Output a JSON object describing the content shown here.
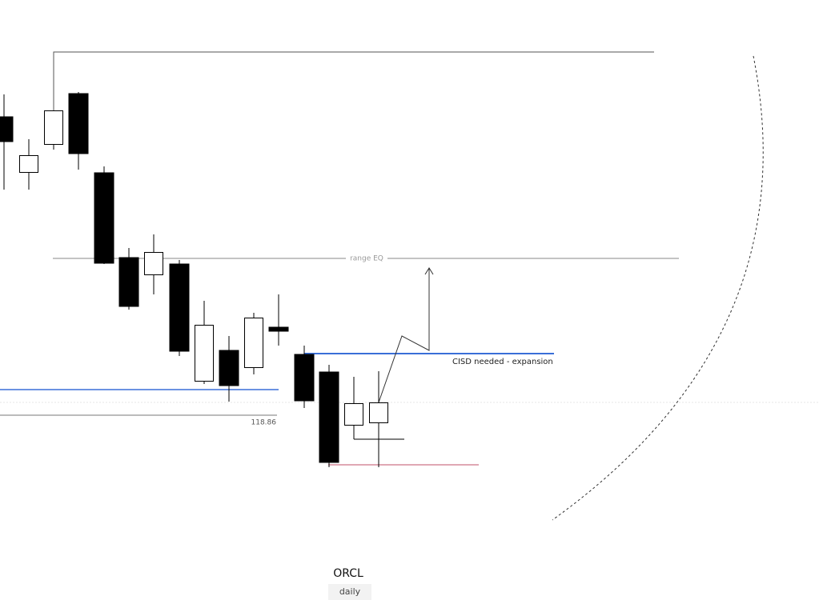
{
  "chart": {
    "symbol": "ORCL",
    "timeframe": "daily",
    "annotations": {
      "range_eq": "range EQ",
      "cisd": "CISD needed - expansion",
      "level_label": "118.86"
    }
  }
}
